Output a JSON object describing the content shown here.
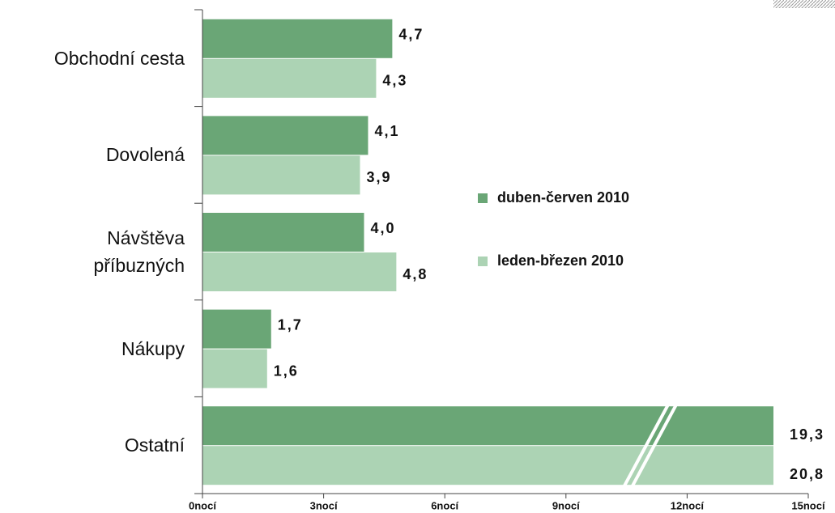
{
  "chart_data": {
    "type": "barh",
    "categories": [
      "Obchodní cesta",
      "Dovolená",
      "Návštěva\npříbuzných",
      "Nákupy",
      "Ostatní"
    ],
    "series": [
      {
        "name": "duben-červen 2010",
        "color": "#6aa676",
        "values": [
          4.7,
          4.1,
          4.0,
          1.7,
          19.3
        ],
        "value_labels": [
          "4,7",
          "4,1",
          "4,0",
          "1,7",
          "19,3"
        ]
      },
      {
        "name": "leden-březen 2010",
        "color": "#acd3b4",
        "values": [
          4.3,
          3.9,
          4.8,
          1.6,
          20.8
        ],
        "value_labels": [
          "4,3",
          "3,9",
          "4,8",
          "1,6",
          "20,8"
        ]
      }
    ],
    "xlim": [
      0,
      15
    ],
    "xticks": [
      {
        "value": 0,
        "label": "0nocí"
      },
      {
        "value": 3,
        "label": "3nocí"
      },
      {
        "value": 6,
        "label": "6nocí"
      },
      {
        "value": 9,
        "label": "9nocí"
      },
      {
        "value": 12,
        "label": "12nocí"
      },
      {
        "value": 15,
        "label": "15nocí"
      }
    ]
  }
}
